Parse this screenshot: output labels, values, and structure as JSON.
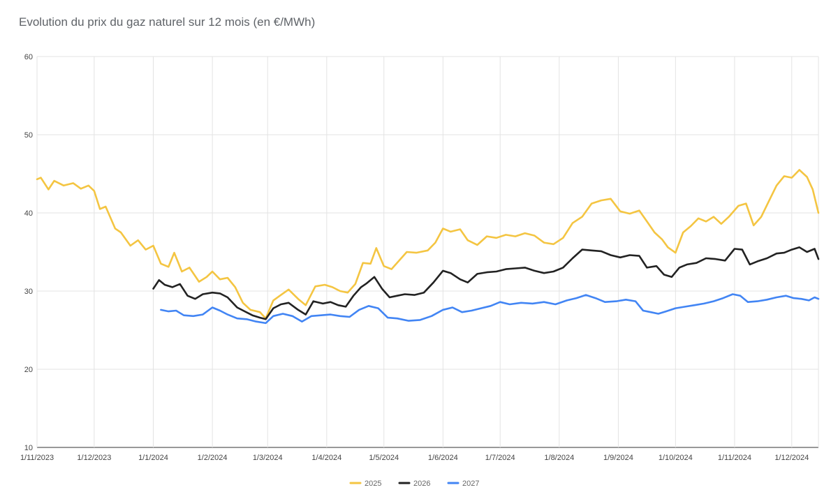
{
  "chart_data": {
    "type": "line",
    "title": "Evolution du prix du gaz naturel sur 12 mois (en €/MWh)",
    "xlabel": "",
    "ylabel": "",
    "ylim": [
      10,
      60
    ],
    "yticks": [
      "10",
      "20",
      "30",
      "40",
      "50",
      "60"
    ],
    "xlim": [
      "2023-11-01",
      "2024-12-15"
    ],
    "xticks": [
      {
        "date": "2023-11-01",
        "label": "1/11/2023"
      },
      {
        "date": "2023-12-01",
        "label": "1/12/2023"
      },
      {
        "date": "2024-01-01",
        "label": "1/1/2024"
      },
      {
        "date": "2024-02-01",
        "label": "1/2/2024"
      },
      {
        "date": "2024-03-01",
        "label": "1/3/2024"
      },
      {
        "date": "2024-04-01",
        "label": "1/4/2024"
      },
      {
        "date": "2024-05-01",
        "label": "1/5/2024"
      },
      {
        "date": "2024-06-01",
        "label": "1/6/2024"
      },
      {
        "date": "2024-07-01",
        "label": "1/7/2024"
      },
      {
        "date": "2024-08-01",
        "label": "1/8/2024"
      },
      {
        "date": "2024-09-01",
        "label": "1/9/2024"
      },
      {
        "date": "2024-10-01",
        "label": "1/10/2024"
      },
      {
        "date": "2024-11-01",
        "label": "1/11/2024"
      },
      {
        "date": "2024-12-01",
        "label": "1/12/2024"
      }
    ],
    "grid": true,
    "legend_position": "bottom",
    "series": [
      {
        "name": "2025",
        "color": "#f4c542",
        "points": [
          [
            "2023-11-01",
            44.3
          ],
          [
            "2023-11-03",
            44.5
          ],
          [
            "2023-11-07",
            43.0
          ],
          [
            "2023-11-10",
            44.1
          ],
          [
            "2023-11-15",
            43.5
          ],
          [
            "2023-11-20",
            43.8
          ],
          [
            "2023-11-24",
            43.1
          ],
          [
            "2023-11-28",
            43.5
          ],
          [
            "2023-12-01",
            42.8
          ],
          [
            "2023-12-04",
            40.5
          ],
          [
            "2023-12-07",
            40.8
          ],
          [
            "2023-12-12",
            38.0
          ],
          [
            "2023-12-15",
            37.5
          ],
          [
            "2023-12-20",
            35.8
          ],
          [
            "2023-12-24",
            36.5
          ],
          [
            "2023-12-28",
            35.3
          ],
          [
            "2024-01-01",
            35.8
          ],
          [
            "2024-01-05",
            33.5
          ],
          [
            "2024-01-09",
            33.1
          ],
          [
            "2024-01-12",
            34.9
          ],
          [
            "2024-01-16",
            32.5
          ],
          [
            "2024-01-20",
            33.0
          ],
          [
            "2024-01-25",
            31.2
          ],
          [
            "2024-01-29",
            31.8
          ],
          [
            "2024-02-01",
            32.5
          ],
          [
            "2024-02-05",
            31.5
          ],
          [
            "2024-02-09",
            31.7
          ],
          [
            "2024-02-13",
            30.5
          ],
          [
            "2024-02-17",
            28.5
          ],
          [
            "2024-02-21",
            27.6
          ],
          [
            "2024-02-26",
            27.3
          ],
          [
            "2024-02-29",
            26.5
          ],
          [
            "2024-03-04",
            28.8
          ],
          [
            "2024-03-08",
            29.5
          ],
          [
            "2024-03-12",
            30.2
          ],
          [
            "2024-03-17",
            29.0
          ],
          [
            "2024-03-21",
            28.2
          ],
          [
            "2024-03-26",
            30.6
          ],
          [
            "2024-03-31",
            30.8
          ],
          [
            "2024-04-04",
            30.5
          ],
          [
            "2024-04-08",
            30.0
          ],
          [
            "2024-04-12",
            29.8
          ],
          [
            "2024-04-16",
            30.9
          ],
          [
            "2024-04-20",
            33.6
          ],
          [
            "2024-04-24",
            33.5
          ],
          [
            "2024-04-27",
            35.5
          ],
          [
            "2024-05-01",
            33.2
          ],
          [
            "2024-05-05",
            32.8
          ],
          [
            "2024-05-09",
            33.9
          ],
          [
            "2024-05-13",
            35.0
          ],
          [
            "2024-05-18",
            34.9
          ],
          [
            "2024-05-24",
            35.2
          ],
          [
            "2024-05-28",
            36.2
          ],
          [
            "2024-06-01",
            38.0
          ],
          [
            "2024-06-05",
            37.6
          ],
          [
            "2024-06-10",
            37.9
          ],
          [
            "2024-06-14",
            36.5
          ],
          [
            "2024-06-19",
            35.9
          ],
          [
            "2024-06-24",
            37.0
          ],
          [
            "2024-06-29",
            36.8
          ],
          [
            "2024-07-04",
            37.2
          ],
          [
            "2024-07-09",
            37.0
          ],
          [
            "2024-07-14",
            37.4
          ],
          [
            "2024-07-19",
            37.1
          ],
          [
            "2024-07-24",
            36.2
          ],
          [
            "2024-07-29",
            36.0
          ],
          [
            "2024-08-03",
            36.8
          ],
          [
            "2024-08-08",
            38.7
          ],
          [
            "2024-08-13",
            39.5
          ],
          [
            "2024-08-18",
            41.2
          ],
          [
            "2024-08-23",
            41.6
          ],
          [
            "2024-08-28",
            41.8
          ],
          [
            "2024-09-02",
            40.2
          ],
          [
            "2024-09-07",
            39.9
          ],
          [
            "2024-09-12",
            40.3
          ],
          [
            "2024-09-16",
            38.9
          ],
          [
            "2024-09-20",
            37.5
          ],
          [
            "2024-09-24",
            36.6
          ],
          [
            "2024-09-27",
            35.6
          ],
          [
            "2024-10-01",
            34.9
          ],
          [
            "2024-10-05",
            37.5
          ],
          [
            "2024-10-09",
            38.3
          ],
          [
            "2024-10-13",
            39.3
          ],
          [
            "2024-10-17",
            38.9
          ],
          [
            "2024-10-21",
            39.5
          ],
          [
            "2024-10-25",
            38.6
          ],
          [
            "2024-10-29",
            39.5
          ],
          [
            "2024-11-03",
            40.9
          ],
          [
            "2024-11-07",
            41.2
          ],
          [
            "2024-11-11",
            38.4
          ],
          [
            "2024-11-15",
            39.5
          ],
          [
            "2024-11-19",
            41.5
          ],
          [
            "2024-11-23",
            43.5
          ],
          [
            "2024-11-27",
            44.7
          ],
          [
            "2024-12-01",
            44.5
          ],
          [
            "2024-12-05",
            45.5
          ],
          [
            "2024-12-09",
            44.6
          ],
          [
            "2024-12-12",
            43.0
          ],
          [
            "2024-12-15",
            40.0
          ]
        ]
      },
      {
        "name": "2026",
        "color": "#222222",
        "points": [
          [
            "2024-01-01",
            30.3
          ],
          [
            "2024-01-04",
            31.4
          ],
          [
            "2024-01-07",
            30.8
          ],
          [
            "2024-01-11",
            30.5
          ],
          [
            "2024-01-15",
            30.9
          ],
          [
            "2024-01-19",
            29.4
          ],
          [
            "2024-01-23",
            29.0
          ],
          [
            "2024-01-27",
            29.6
          ],
          [
            "2024-02-01",
            29.8
          ],
          [
            "2024-02-05",
            29.7
          ],
          [
            "2024-02-09",
            29.2
          ],
          [
            "2024-02-14",
            27.9
          ],
          [
            "2024-02-18",
            27.4
          ],
          [
            "2024-02-22",
            26.9
          ],
          [
            "2024-02-26",
            26.6
          ],
          [
            "2024-02-29",
            26.4
          ],
          [
            "2024-03-04",
            27.8
          ],
          [
            "2024-03-08",
            28.3
          ],
          [
            "2024-03-12",
            28.5
          ],
          [
            "2024-03-17",
            27.6
          ],
          [
            "2024-03-21",
            27.0
          ],
          [
            "2024-03-25",
            28.7
          ],
          [
            "2024-03-30",
            28.4
          ],
          [
            "2024-04-03",
            28.6
          ],
          [
            "2024-04-07",
            28.2
          ],
          [
            "2024-04-11",
            28.0
          ],
          [
            "2024-04-15",
            29.4
          ],
          [
            "2024-04-19",
            30.5
          ],
          [
            "2024-04-22",
            31.0
          ],
          [
            "2024-04-26",
            31.8
          ],
          [
            "2024-04-30",
            30.3
          ],
          [
            "2024-05-04",
            29.2
          ],
          [
            "2024-05-08",
            29.4
          ],
          [
            "2024-05-12",
            29.6
          ],
          [
            "2024-05-17",
            29.5
          ],
          [
            "2024-05-22",
            29.8
          ],
          [
            "2024-05-27",
            31.1
          ],
          [
            "2024-06-01",
            32.6
          ],
          [
            "2024-06-05",
            32.3
          ],
          [
            "2024-06-10",
            31.5
          ],
          [
            "2024-06-14",
            31.1
          ],
          [
            "2024-06-19",
            32.2
          ],
          [
            "2024-06-24",
            32.4
          ],
          [
            "2024-06-29",
            32.5
          ],
          [
            "2024-07-04",
            32.8
          ],
          [
            "2024-07-09",
            32.9
          ],
          [
            "2024-07-14",
            33.0
          ],
          [
            "2024-07-19",
            32.6
          ],
          [
            "2024-07-24",
            32.3
          ],
          [
            "2024-07-29",
            32.5
          ],
          [
            "2024-08-03",
            33.0
          ],
          [
            "2024-08-08",
            34.2
          ],
          [
            "2024-08-13",
            35.3
          ],
          [
            "2024-08-18",
            35.2
          ],
          [
            "2024-08-23",
            35.1
          ],
          [
            "2024-08-28",
            34.6
          ],
          [
            "2024-09-02",
            34.3
          ],
          [
            "2024-09-07",
            34.6
          ],
          [
            "2024-09-12",
            34.5
          ],
          [
            "2024-09-16",
            33.0
          ],
          [
            "2024-09-21",
            33.2
          ],
          [
            "2024-09-25",
            32.1
          ],
          [
            "2024-09-29",
            31.8
          ],
          [
            "2024-10-03",
            33.0
          ],
          [
            "2024-10-07",
            33.4
          ],
          [
            "2024-10-12",
            33.6
          ],
          [
            "2024-10-17",
            34.2
          ],
          [
            "2024-10-22",
            34.1
          ],
          [
            "2024-10-27",
            33.9
          ],
          [
            "2024-11-01",
            35.4
          ],
          [
            "2024-11-05",
            35.3
          ],
          [
            "2024-11-09",
            33.4
          ],
          [
            "2024-11-13",
            33.8
          ],
          [
            "2024-11-18",
            34.2
          ],
          [
            "2024-11-23",
            34.8
          ],
          [
            "2024-11-27",
            34.9
          ],
          [
            "2024-12-01",
            35.3
          ],
          [
            "2024-12-05",
            35.6
          ],
          [
            "2024-12-09",
            35.0
          ],
          [
            "2024-12-13",
            35.4
          ],
          [
            "2024-12-15",
            34.1
          ]
        ]
      },
      {
        "name": "2027",
        "color": "#4285f4",
        "points": [
          [
            "2024-01-05",
            27.6
          ],
          [
            "2024-01-09",
            27.4
          ],
          [
            "2024-01-13",
            27.5
          ],
          [
            "2024-01-17",
            26.9
          ],
          [
            "2024-01-22",
            26.8
          ],
          [
            "2024-01-27",
            27.0
          ],
          [
            "2024-02-01",
            27.9
          ],
          [
            "2024-02-05",
            27.5
          ],
          [
            "2024-02-09",
            27.0
          ],
          [
            "2024-02-14",
            26.5
          ],
          [
            "2024-02-19",
            26.4
          ],
          [
            "2024-02-24",
            26.1
          ],
          [
            "2024-02-29",
            25.9
          ],
          [
            "2024-03-04",
            26.8
          ],
          [
            "2024-03-09",
            27.1
          ],
          [
            "2024-03-14",
            26.8
          ],
          [
            "2024-03-19",
            26.1
          ],
          [
            "2024-03-24",
            26.8
          ],
          [
            "2024-03-29",
            26.9
          ],
          [
            "2024-04-03",
            27.0
          ],
          [
            "2024-04-08",
            26.8
          ],
          [
            "2024-04-13",
            26.7
          ],
          [
            "2024-04-18",
            27.6
          ],
          [
            "2024-04-23",
            28.1
          ],
          [
            "2024-04-28",
            27.8
          ],
          [
            "2024-05-03",
            26.6
          ],
          [
            "2024-05-08",
            26.5
          ],
          [
            "2024-05-14",
            26.2
          ],
          [
            "2024-05-20",
            26.3
          ],
          [
            "2024-05-26",
            26.8
          ],
          [
            "2024-06-01",
            27.6
          ],
          [
            "2024-06-06",
            27.9
          ],
          [
            "2024-06-11",
            27.3
          ],
          [
            "2024-06-16",
            27.5
          ],
          [
            "2024-06-21",
            27.8
          ],
          [
            "2024-06-26",
            28.1
          ],
          [
            "2024-07-01",
            28.6
          ],
          [
            "2024-07-06",
            28.3
          ],
          [
            "2024-07-12",
            28.5
          ],
          [
            "2024-07-18",
            28.4
          ],
          [
            "2024-07-24",
            28.6
          ],
          [
            "2024-07-30",
            28.3
          ],
          [
            "2024-08-05",
            28.8
          ],
          [
            "2024-08-10",
            29.1
          ],
          [
            "2024-08-15",
            29.5
          ],
          [
            "2024-08-20",
            29.1
          ],
          [
            "2024-08-25",
            28.6
          ],
          [
            "2024-08-31",
            28.7
          ],
          [
            "2024-09-05",
            28.9
          ],
          [
            "2024-09-10",
            28.7
          ],
          [
            "2024-09-14",
            27.5
          ],
          [
            "2024-09-18",
            27.3
          ],
          [
            "2024-09-22",
            27.1
          ],
          [
            "2024-09-26",
            27.4
          ],
          [
            "2024-10-01",
            27.8
          ],
          [
            "2024-10-06",
            28.0
          ],
          [
            "2024-10-11",
            28.2
          ],
          [
            "2024-10-16",
            28.4
          ],
          [
            "2024-10-21",
            28.7
          ],
          [
            "2024-10-26",
            29.1
          ],
          [
            "2024-10-31",
            29.6
          ],
          [
            "2024-11-04",
            29.4
          ],
          [
            "2024-11-08",
            28.6
          ],
          [
            "2024-11-13",
            28.7
          ],
          [
            "2024-11-18",
            28.9
          ],
          [
            "2024-11-23",
            29.2
          ],
          [
            "2024-11-28",
            29.4
          ],
          [
            "2024-12-02",
            29.1
          ],
          [
            "2024-12-06",
            29.0
          ],
          [
            "2024-12-10",
            28.8
          ],
          [
            "2024-12-13",
            29.2
          ],
          [
            "2024-12-15",
            29.0
          ]
        ]
      }
    ]
  }
}
